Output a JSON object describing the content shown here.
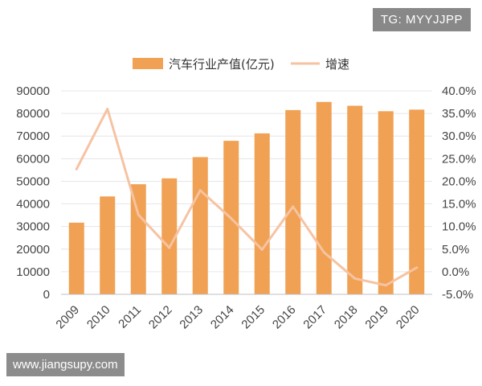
{
  "watermark_top": "TG: MYYJJPP",
  "watermark_bottom": "www.jiangsupy.com",
  "colors": {
    "bar": "#F0A153",
    "line": "#F6C3A2",
    "grid": "#E6E6E6",
    "axis": "#BFBFBF"
  },
  "chart_data": {
    "type": "bar",
    "categories": [
      "2009",
      "2010",
      "2011",
      "2012",
      "2013",
      "2014",
      "2015",
      "2016",
      "2017",
      "2018",
      "2019",
      "2020"
    ],
    "series": [
      {
        "name": "汽车行业产值(亿元)",
        "type": "bar",
        "axis": "left",
        "values": [
          31700,
          43300,
          48700,
          51300,
          60700,
          67900,
          71200,
          81500,
          85100,
          83400,
          81000,
          81700
        ]
      },
      {
        "name": "增速",
        "type": "line",
        "axis": "right",
        "values": [
          22.7,
          36.0,
          12.6,
          5.3,
          18.0,
          11.8,
          4.9,
          14.4,
          4.3,
          -1.5,
          -3.0,
          0.9
        ]
      }
    ],
    "y_left": {
      "lim": [
        0,
        90000
      ],
      "ticks": [
        "0",
        "10000",
        "20000",
        "30000",
        "40000",
        "50000",
        "60000",
        "70000",
        "80000",
        "90000"
      ]
    },
    "y_right": {
      "lim": [
        -5,
        40
      ],
      "ticks": [
        "-5.0%",
        "0.0%",
        "5.0%",
        "10.0%",
        "15.0%",
        "20.0%",
        "25.0%",
        "30.0%",
        "35.0%",
        "40.0%"
      ]
    },
    "grid": true,
    "legend_position": "top"
  }
}
